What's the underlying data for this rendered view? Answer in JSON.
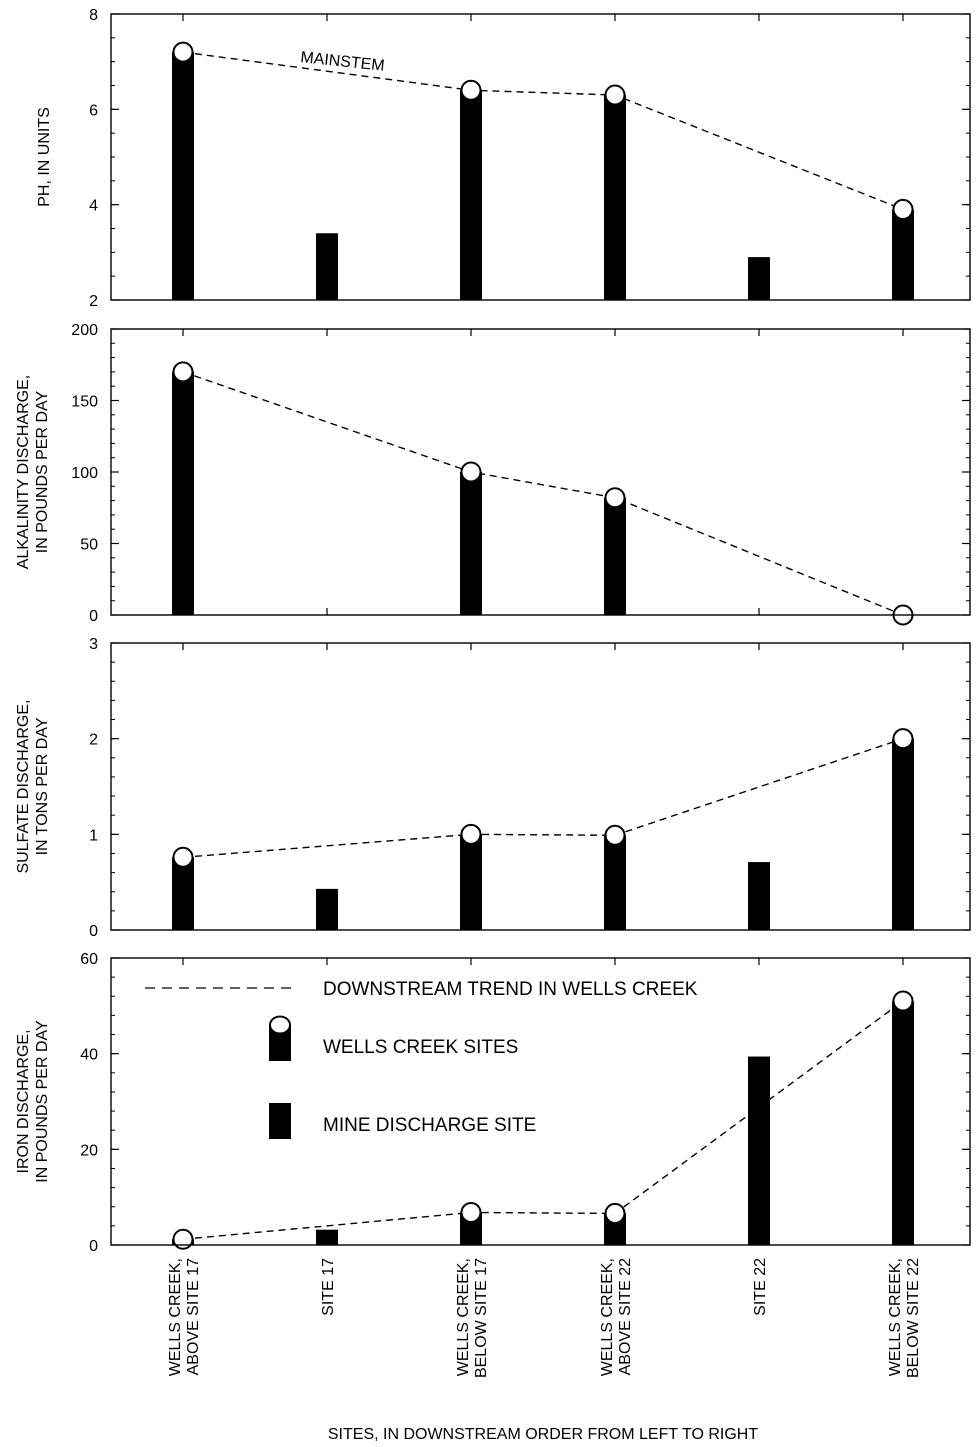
{
  "chart_data": [
    {
      "type": "bar",
      "ylabel": "PH, IN UNITS",
      "ylim": [
        2,
        8
      ],
      "yticks": [
        2,
        4,
        6,
        8
      ],
      "minor_step": 0.5,
      "categories": [
        "WELLS CREEK, ABOVE SITE 17",
        "SITE 17",
        "WELLS CREEK, BELOW SITE 17",
        "WELLS CREEK, ABOVE SITE 22",
        "SITE 22",
        "WELLS CREEK, BELOW SITE 22"
      ],
      "values": [
        7.2,
        3.4,
        6.4,
        6.3,
        2.9,
        3.9
      ],
      "trend_values": [
        7.2,
        null,
        6.4,
        6.3,
        null,
        3.9
      ],
      "circle_values": [
        7.2,
        null,
        6.4,
        6.3,
        null,
        3.9
      ],
      "annotation": "MAINSTEM"
    },
    {
      "type": "bar",
      "ylabel": [
        "ALKALINITY DISCHARGE,",
        "IN POUNDS PER DAY"
      ],
      "ylim": [
        0,
        200
      ],
      "yticks": [
        0,
        50,
        100,
        150,
        200
      ],
      "minor_step": 10,
      "categories": [
        "WELLS CREEK, ABOVE SITE 17",
        "SITE 17",
        "WELLS CREEK, BELOW SITE 17",
        "WELLS CREEK, ABOVE SITE 22",
        "SITE 22",
        "WELLS CREEK, BELOW SITE 22"
      ],
      "values": [
        170,
        0,
        100,
        82,
        0,
        0
      ],
      "trend_values": [
        170,
        null,
        100,
        82,
        null,
        0
      ],
      "circle_values": [
        170,
        null,
        100,
        82,
        null,
        0
      ]
    },
    {
      "type": "bar",
      "ylabel": [
        "SULFATE DISCHARGE,",
        "IN TONS PER DAY"
      ],
      "ylim": [
        0,
        3
      ],
      "yticks": [
        0,
        1,
        2,
        3
      ],
      "minor_step": 0.2,
      "categories": [
        "WELLS CREEK, ABOVE SITE 17",
        "SITE 17",
        "WELLS CREEK, BELOW SITE 17",
        "WELLS CREEK, ABOVE SITE 22",
        "SITE 22",
        "WELLS CREEK, BELOW SITE 22"
      ],
      "values": [
        0.76,
        0.43,
        1.0,
        0.99,
        0.71,
        2.0
      ],
      "trend_values": [
        0.76,
        null,
        1.0,
        0.99,
        null,
        2.0
      ],
      "circle_values": [
        0.76,
        null,
        1.0,
        0.99,
        null,
        2.0
      ]
    },
    {
      "type": "bar",
      "ylabel": [
        "IRON DISCHARGE,",
        "IN POUNDS PER DAY"
      ],
      "ylim": [
        0,
        60
      ],
      "yticks": [
        0,
        20,
        40,
        60
      ],
      "minor_step": 4,
      "categories": [
        "WELLS CREEK, ABOVE SITE 17",
        "SITE 17",
        "WELLS CREEK, BELOW SITE 17",
        "WELLS CREEK, ABOVE SITE 22",
        "SITE 22",
        "WELLS CREEK, BELOW SITE 22"
      ],
      "values": [
        1.2,
        3.2,
        6.8,
        6.6,
        39.4,
        51
      ],
      "trend_values": [
        1.2,
        null,
        6.8,
        6.6,
        null,
        51
      ],
      "circle_values": [
        1.2,
        null,
        6.8,
        6.6,
        null,
        51
      ]
    }
  ],
  "category_labels": [
    [
      "WELLS CREEK,",
      "ABOVE SITE 17"
    ],
    [
      "SITE 17"
    ],
    [
      "WELLS CREEK,",
      "BELOW SITE 17"
    ],
    [
      "WELLS CREEK,",
      "ABOVE SITE 22"
    ],
    [
      "SITE 22"
    ],
    [
      "WELLS CREEK,",
      "BELOW SITE 22"
    ]
  ],
  "x_title": "SITES, IN DOWNSTREAM ORDER FROM LEFT TO RIGHT",
  "legend": {
    "trend_label": "DOWNSTREAM TREND IN WELLS CREEK",
    "wells_label": "WELLS CREEK SITES",
    "mine_label": "MINE DISCHARGE SITE"
  },
  "colors": {
    "bar": "#000000",
    "trend_line": "#000000",
    "circle_fill": "#ffffff",
    "frame": "#000000"
  }
}
